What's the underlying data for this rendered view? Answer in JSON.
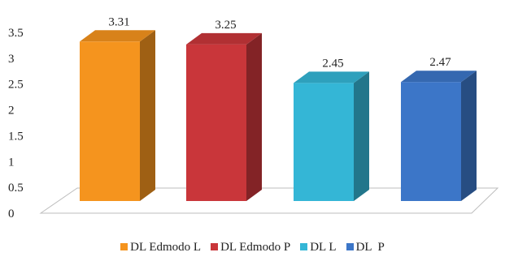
{
  "chart_data": {
    "type": "bar",
    "categories": [
      "DL Edmodo L",
      "DL Edmodo P",
      "DL L",
      "DL  P"
    ],
    "values": [
      3.31,
      3.25,
      2.45,
      2.47
    ],
    "value_labels": [
      "3.31",
      "3.25",
      "2.45",
      "2.47"
    ],
    "title": "",
    "xlabel": "",
    "ylabel": "",
    "ylim": [
      0,
      3.5
    ],
    "yticks": [
      "0",
      "0.5",
      "1",
      "1.5",
      "2",
      "2.5",
      "3",
      "3.5"
    ],
    "grid": false,
    "legend_position": "bottom",
    "style": "3d-column",
    "colors": [
      "#F5941E",
      "#C9363A",
      "#34B6D6",
      "#3C76C8"
    ]
  }
}
